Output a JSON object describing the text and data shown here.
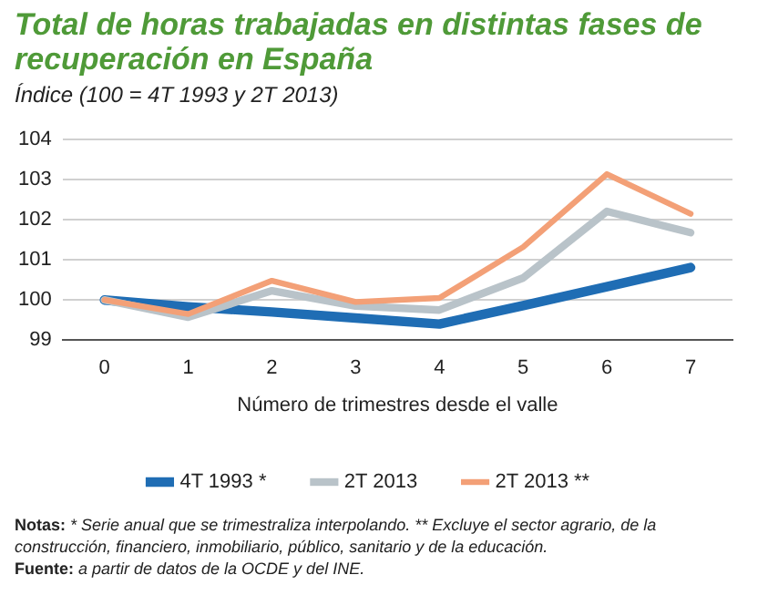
{
  "chart_data": {
    "type": "line",
    "title": "Total de horas trabajadas en distintas fases de recuperación en España",
    "subtitle": "Índice (100 = 4T 1993 y 2T 2013)",
    "xlabel": "Número de trimestres desde el valle",
    "categories": [
      "0",
      "1",
      "2",
      "3",
      "4",
      "5",
      "6",
      "7"
    ],
    "series": [
      {
        "name": "4T 1993 *",
        "color": "#1f6db4",
        "values": [
          100,
          99.83,
          99.7,
          99.55,
          99.4,
          99.86,
          100.33,
          100.81
        ]
      },
      {
        "name": "2T 2013",
        "color": "#b9c3c9",
        "values": [
          100,
          99.57,
          100.23,
          99.85,
          99.75,
          100.55,
          102.21,
          101.68
        ]
      },
      {
        "name": "2T 2013 **",
        "color": "#f3a077",
        "values": [
          100,
          99.65,
          100.48,
          99.95,
          100.05,
          101.32,
          103.14,
          102.15
        ]
      }
    ],
    "ylim": [
      99,
      104
    ],
    "yticks": [
      99,
      100,
      101,
      102,
      103,
      104
    ],
    "grid": "y",
    "legend": "bottom",
    "marker": "none",
    "line_style": "solid",
    "annotations": [
      "Notas: * Serie anual que se trimestraliza interpolando.  ** Excluye el sector agrario, de la construcción, financiero, inmobiliario, público, sanitario y de la educación.",
      "Fuente: a partir de datos de la OCDE y del INE."
    ]
  }
}
